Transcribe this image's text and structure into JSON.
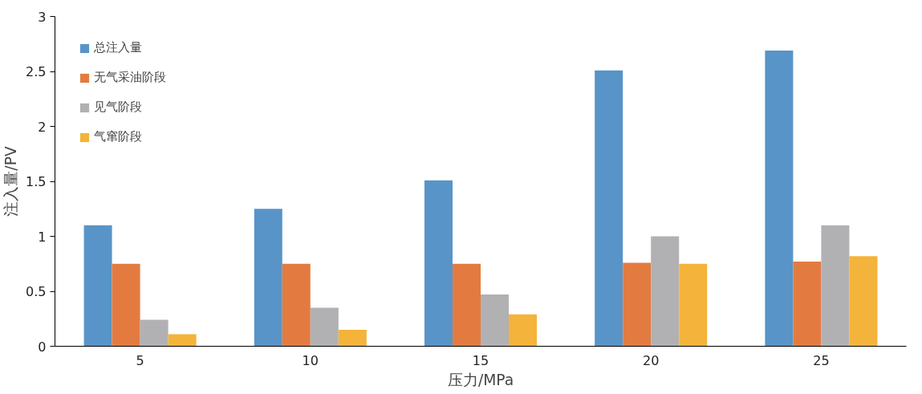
{
  "chart_data": {
    "type": "bar",
    "xlabel": "压力/MPa",
    "ylabel": "注入量/PV",
    "categories": [
      "5",
      "10",
      "15",
      "20",
      "25"
    ],
    "series": [
      {
        "name": "总注入量",
        "color": "#5894c8",
        "values": [
          1.1,
          1.25,
          1.51,
          2.51,
          2.69
        ]
      },
      {
        "name": "无气采油阶段",
        "color": "#e37b40",
        "values": [
          0.75,
          0.75,
          0.75,
          0.76,
          0.77
        ]
      },
      {
        "name": "见气阶段",
        "color": "#b1b1b3",
        "values": [
          0.24,
          0.35,
          0.47,
          1.0,
          1.1
        ]
      },
      {
        "name": "气窜阶段",
        "color": "#f4b33a",
        "values": [
          0.11,
          0.15,
          0.29,
          0.75,
          0.82
        ]
      }
    ],
    "ylim": [
      0,
      3
    ],
    "yticks": [
      0,
      0.5,
      1,
      1.5,
      2,
      2.5,
      3
    ],
    "grid": false,
    "legend": "top left"
  }
}
